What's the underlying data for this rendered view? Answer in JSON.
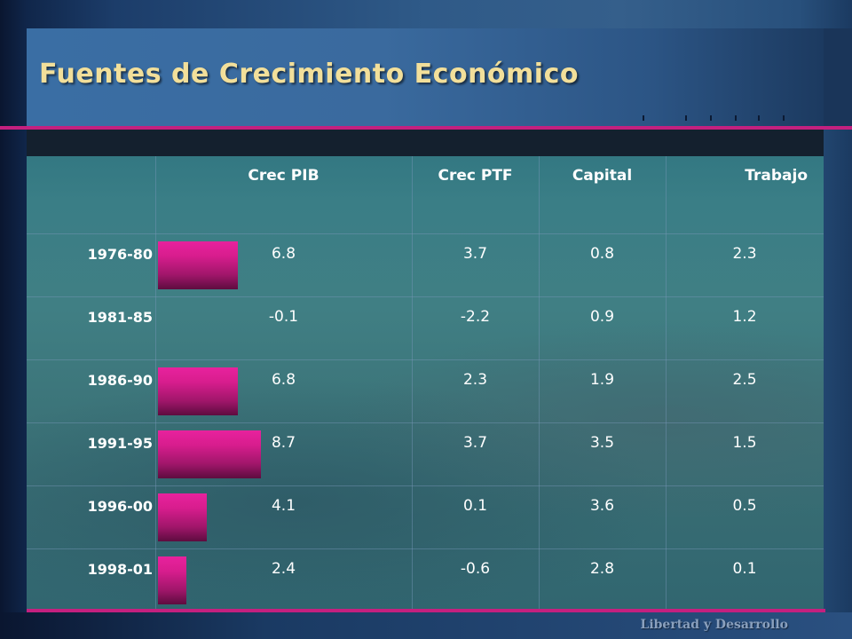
{
  "slide": {
    "title": "Fuentes de Crecimiento Económico",
    "footer_brand": "Libertad y Desarrollo",
    "colors": {
      "title_text": "#f2df9a",
      "accent_rule": "#c4207f",
      "bar": "#e8229d",
      "background": "#0d1e3c"
    }
  },
  "table": {
    "columns": [
      "Crec PIB",
      "Crec PTF",
      "Capital",
      "Trabajo"
    ],
    "rows": [
      {
        "period": "1976-80",
        "crec_pib": "6.8",
        "crec_ptf": "3.7",
        "capital": "0.8",
        "trabajo": "2.3"
      },
      {
        "period": "1981-85",
        "crec_pib": "-0.1",
        "crec_ptf": "-2.2",
        "capital": "0.9",
        "trabajo": "1.2"
      },
      {
        "period": "1986-90",
        "crec_pib": "6.8",
        "crec_ptf": "2.3",
        "capital": "1.9",
        "trabajo": "2.5"
      },
      {
        "period": "1991-95",
        "crec_pib": "8.7",
        "crec_ptf": "3.7",
        "capital": "3.5",
        "trabajo": "1.5"
      },
      {
        "period": "1996-00",
        "crec_pib": "4.1",
        "crec_ptf": "0.1",
        "capital": "3.6",
        "trabajo": "0.5"
      },
      {
        "period": "1998-01",
        "crec_pib": "2.4",
        "crec_ptf": "-0.6",
        "capital": "2.8",
        "trabajo": "0.1"
      }
    ]
  }
}
